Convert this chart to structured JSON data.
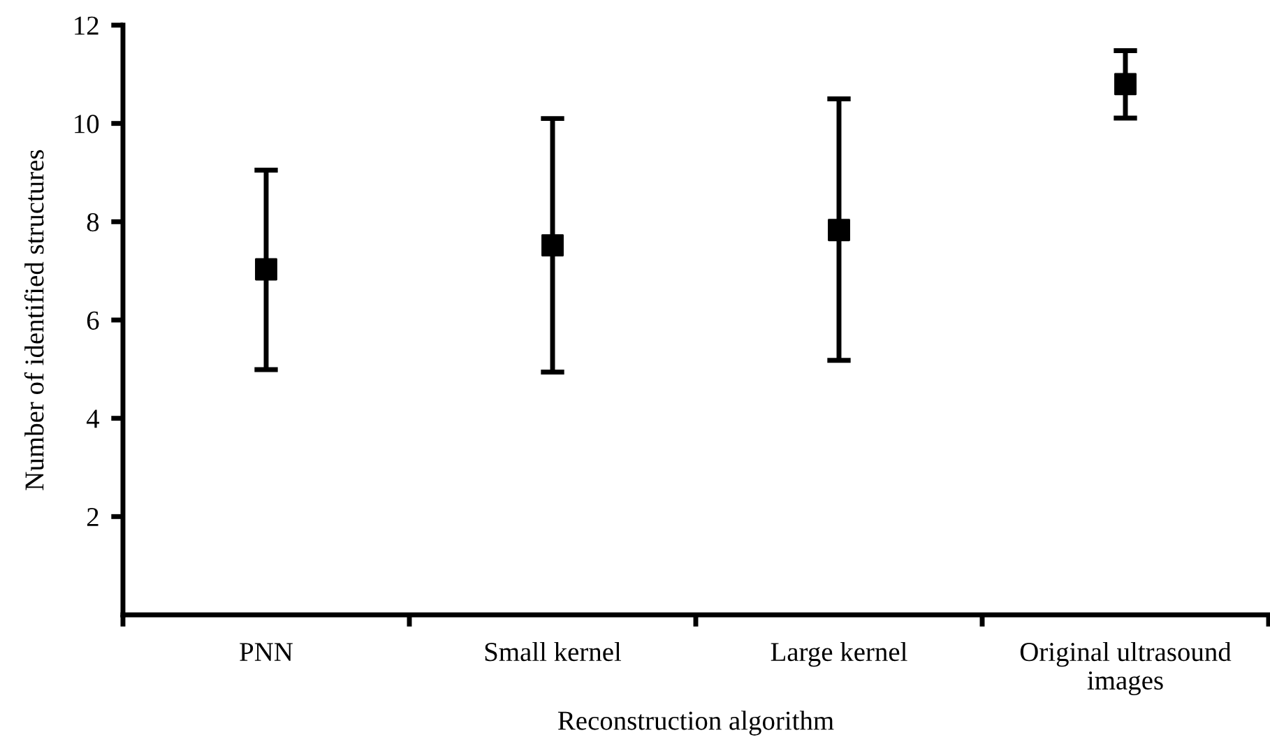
{
  "chart_data": {
    "type": "scatter",
    "xlabel": "Reconstruction algorithm",
    "ylabel": "Number of identified structures",
    "categories": [
      "PNN",
      "Small kernel",
      "Large kernel",
      "Original ultrasound\nimages"
    ],
    "series": [
      {
        "color": "#000000",
        "values": [
          7.03,
          7.52,
          7.83,
          10.8
        ],
        "errors": [
          [
            4.99,
            9.05
          ],
          [
            4.94,
            10.1
          ],
          [
            5.18,
            10.5
          ],
          [
            10.11,
            11.48
          ]
        ]
      }
    ],
    "ylim": [
      0,
      12
    ],
    "yticks": [
      2,
      4,
      6,
      8,
      10,
      12
    ],
    "grid": false,
    "legend": false,
    "marker": "square"
  }
}
